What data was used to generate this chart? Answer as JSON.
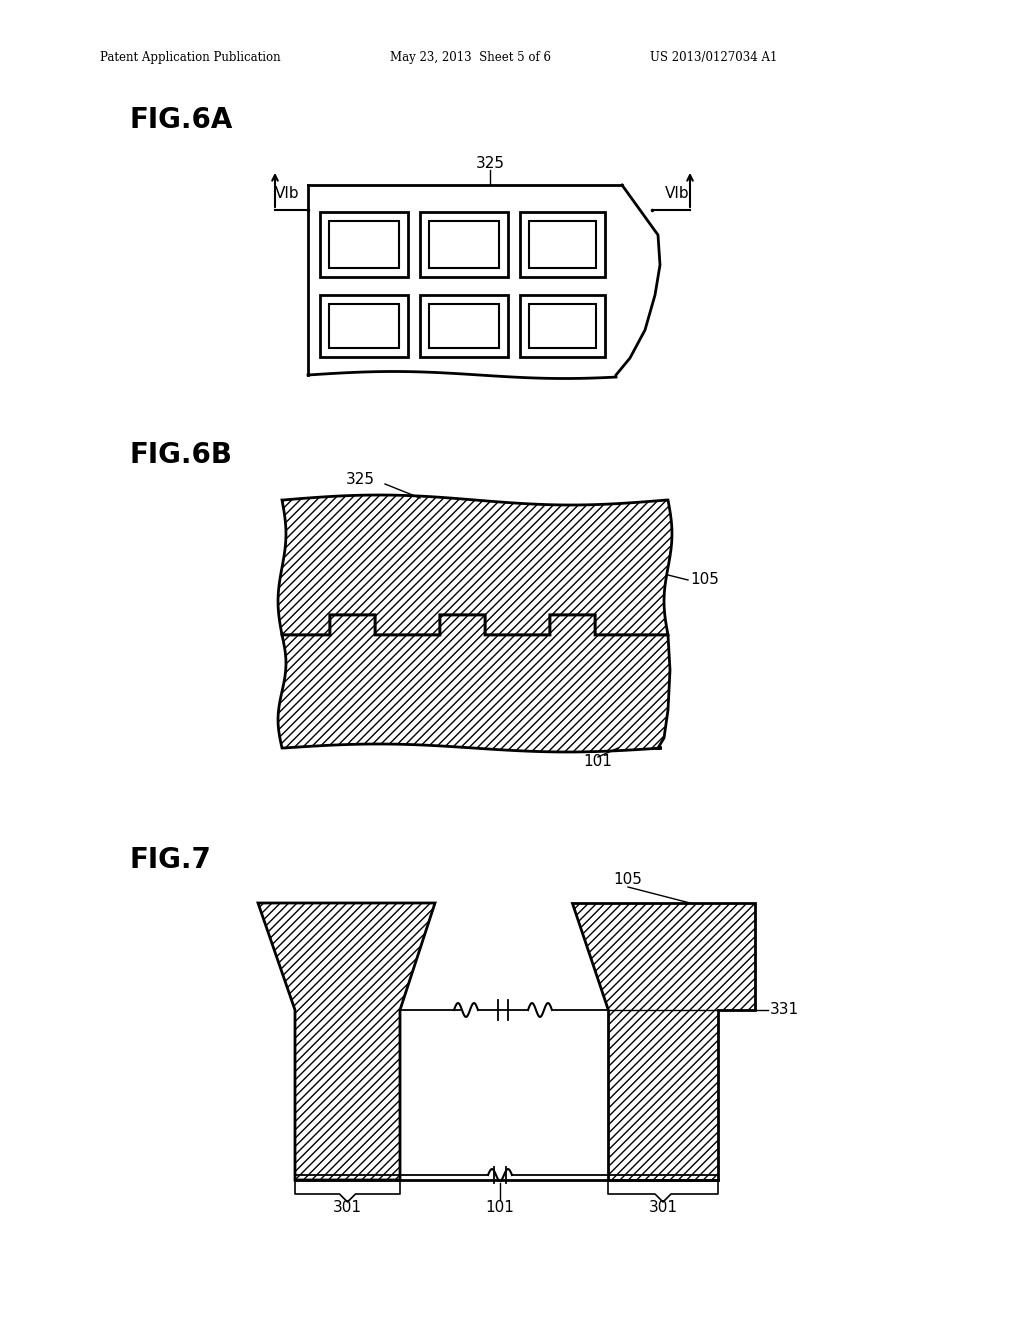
{
  "background_color": "#ffffff",
  "header_left": "Patent Application Publication",
  "header_mid": "May 23, 2013  Sheet 5 of 6",
  "header_right": "US 2013/0127034 A1",
  "fig6a_label": "FIG.6A",
  "fig6b_label": "FIG.6B",
  "fig7_label": "FIG.7",
  "label_325_6a": "325",
  "label_325_6b": "325",
  "label_105_6b": "105",
  "label_101_6b": "101",
  "label_105_7": "105",
  "label_331_7": "331",
  "label_301_7_left": "301",
  "label_301_7_right": "301",
  "label_101_7": "101",
  "label_VIb_left": "VIb",
  "label_VIb_right": "VIb"
}
